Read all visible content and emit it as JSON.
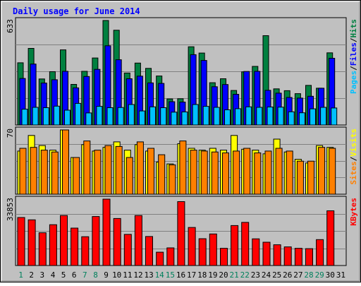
{
  "chart_data": {
    "type": "bar",
    "title": "Daily usage for June 2014",
    "categories": [
      "1",
      "2",
      "3",
      "4",
      "5",
      "6",
      "7",
      "8",
      "9",
      "10",
      "11",
      "12",
      "13",
      "14",
      "15",
      "16",
      "17",
      "18",
      "19",
      "20",
      "21",
      "22",
      "23",
      "24",
      "25",
      "26",
      "27",
      "28",
      "29",
      "30",
      "31"
    ],
    "weekend_days": [
      "1",
      "7",
      "8",
      "14",
      "15",
      "21",
      "22",
      "28",
      "29"
    ],
    "panels": [
      {
        "id": "hits-files-pages",
        "ymax_label": "633",
        "ymax": 633,
        "axis_labels": [
          {
            "text": "Pages",
            "color": "#00C0FF"
          },
          {
            "text": "Files",
            "color": "#0000FF"
          },
          {
            "text": "Hits",
            "color": "#008040"
          }
        ],
        "series": [
          {
            "name": "Hits",
            "color": "#008040",
            "values": [
              377,
              464,
              279,
              323,
              455,
              246,
              325,
              406,
              633,
              574,
              315,
              375,
              343,
              297,
              158,
              159,
              474,
              436,
              256,
              280,
              209,
              322,
              355,
              541,
              219,
              208,
              190,
              240,
              223,
              437,
              0
            ]
          },
          {
            "name": "Files",
            "color": "#0000FF",
            "values": [
              282,
              369,
              254,
              274,
              325,
              225,
              294,
              337,
              480,
              395,
              280,
              296,
              255,
              252,
              141,
              139,
              426,
              391,
              232,
              245,
              186,
              324,
              325,
              210,
              193,
              167,
              163,
              174,
              223,
              404,
              0
            ]
          },
          {
            "name": "Pages",
            "color": "#00C0FF",
            "values": [
              96,
              107,
              105,
              114,
              90,
              131,
              73,
              113,
              105,
              106,
              124,
              85,
              110,
              105,
              78,
              79,
              124,
              113,
              107,
              92,
              99,
              110,
              107,
              109,
              108,
              80,
              74,
              98,
              107,
              103,
              0
            ]
          }
        ]
      },
      {
        "id": "visits-sites",
        "ymax_label": "70",
        "ymax": 70,
        "axis_labels": [
          {
            "text": "Sites",
            "color": "#FF8000"
          },
          {
            "text": "Visits",
            "color": "#FFFF00"
          }
        ],
        "series": [
          {
            "name": "Visits",
            "color": "#FFFF00",
            "values": [
              47,
              64,
              53,
              48,
              70,
              40,
              54,
              47,
              51,
              57,
              48,
              54,
              47,
              35,
              33,
              55,
              50,
              48,
              50,
              48,
              64,
              49,
              48,
              44,
              60,
              46,
              38,
              34,
              53,
              51,
              0
            ]
          },
          {
            "name": "Sites",
            "color": "#FF8000",
            "values": [
              50,
              51,
              48,
              46,
              70,
              40,
              58,
              48,
              53,
              52,
              40,
              57,
              50,
              43,
              32,
              58,
              48,
              47,
              46,
              45,
              47,
              50,
              45,
              47,
              50,
              47,
              36,
              36,
              51,
              50,
              0
            ]
          }
        ]
      },
      {
        "id": "kbytes",
        "ymax_label": "33853",
        "ymax": 33853,
        "axis_labels": [
          {
            "text": "KBytes",
            "color": "#FF0000"
          }
        ],
        "series": [
          {
            "name": "KBytes",
            "color": "#FF0000",
            "values": [
              24500,
              23300,
              16700,
              20800,
              25500,
              19100,
              14700,
              25000,
              33853,
              24000,
              15900,
              25500,
              14800,
              6800,
              9000,
              32600,
              19400,
              13700,
              16100,
              8800,
              20400,
              22000,
              13600,
              11900,
              10600,
              9500,
              8800,
              8600,
              13200,
              27900,
              0
            ]
          }
        ]
      }
    ]
  }
}
